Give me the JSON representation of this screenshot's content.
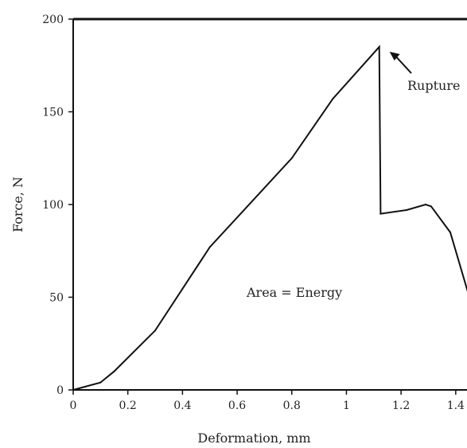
{
  "chart_data": {
    "type": "line",
    "title": "",
    "xlabel": "Deformation, mm",
    "ylabel": "Force, N",
    "xlim": [
      0,
      1.45
    ],
    "ylim": [
      0,
      200
    ],
    "x_ticks": [
      0,
      0.2,
      0.4,
      0.6,
      0.8,
      1,
      1.2,
      1.4
    ],
    "x_tick_labels": [
      "0",
      "0.2",
      "0.4",
      "0.6",
      "0.8",
      "1",
      "1.2",
      "1.4"
    ],
    "y_ticks": [
      0,
      50,
      100,
      150,
      200
    ],
    "y_tick_labels": [
      "0",
      "50",
      "100",
      "150",
      "200"
    ],
    "grid": false,
    "legend": "none",
    "series": [
      {
        "x": [
          0,
          0.1,
          0.15,
          0.3,
          0.5,
          0.8,
          0.95,
          1.12,
          1.125,
          1.22,
          1.29,
          1.31,
          1.38,
          1.45
        ],
        "y": [
          0,
          4,
          10,
          32,
          77,
          125,
          157,
          185,
          95,
          97,
          100,
          99,
          85,
          50
        ]
      }
    ],
    "annotations": [
      {
        "text": "Rupture",
        "x": 1.12,
        "y": 185,
        "arrow": true
      },
      {
        "text": "Area = Energy",
        "x": 0.9,
        "y": 52,
        "arrow": false
      }
    ]
  }
}
